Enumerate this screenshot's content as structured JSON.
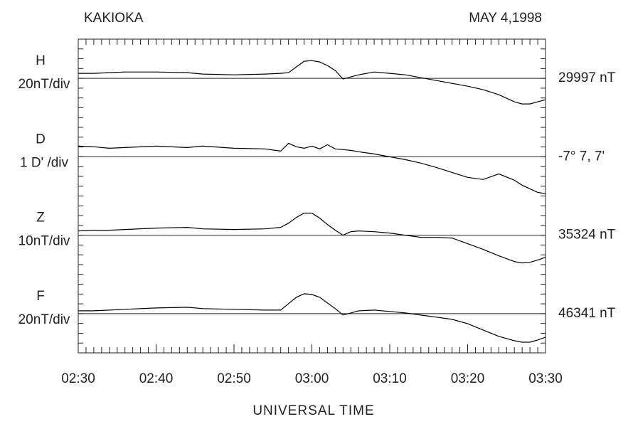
{
  "chart_data": {
    "type": "line",
    "title": "KAKIOKA",
    "subtitle": "MAY 4,1998",
    "x_label": "UNIVERSAL TIME",
    "x": [
      150,
      152,
      154,
      156,
      160,
      164,
      166,
      170,
      174,
      176,
      177,
      178,
      179,
      180,
      181,
      182,
      183,
      184,
      185,
      186,
      188,
      190,
      192,
      194,
      196,
      198,
      200,
      202,
      204,
      206,
      207,
      208,
      209,
      210
    ],
    "xlim": [
      150,
      210
    ],
    "xticks": [
      {
        "value": 150,
        "label": "02:30"
      },
      {
        "value": 160,
        "label": "02:40"
      },
      {
        "value": 170,
        "label": "02:50"
      },
      {
        "value": 180,
        "label": "03:00"
      },
      {
        "value": 190,
        "label": "03:10"
      },
      {
        "value": 200,
        "label": "03:20"
      },
      {
        "value": 210,
        "label": "03:30"
      }
    ],
    "xminorticks": [
      150,
      151,
      152,
      153,
      154,
      155,
      156,
      157,
      158,
      159,
      160,
      161,
      162,
      163,
      164,
      165,
      166,
      167,
      168,
      169,
      170,
      171,
      172,
      173,
      174,
      175,
      176,
      177,
      178,
      179,
      180,
      181,
      182,
      183,
      184,
      185,
      186,
      187,
      188,
      189,
      190,
      191,
      192,
      193,
      194,
      195,
      196,
      197,
      198,
      199,
      200,
      201,
      202,
      203,
      204,
      205,
      206,
      207,
      208,
      209,
      210
    ],
    "ylim": [
      0,
      32
    ],
    "yticks": [
      0,
      1,
      2,
      3,
      4,
      5,
      6,
      7,
      8,
      9,
      10,
      11,
      12,
      13,
      14,
      15,
      16,
      17,
      18,
      19,
      20,
      21,
      22,
      23,
      24,
      25,
      26,
      27,
      28,
      29,
      30,
      31,
      32
    ],
    "series": [
      {
        "name": "H",
        "scale_label": "20nT/div",
        "baseline_label": "29997 nT",
        "baseline": 28,
        "color": "#000000",
        "values": [
          28.51,
          28.51,
          28.58,
          28.65,
          28.65,
          28.58,
          28.44,
          28.36,
          28.44,
          28.51,
          28.58,
          29.16,
          29.74,
          29.81,
          29.67,
          29.31,
          28.8,
          27.93,
          28.15,
          28.36,
          28.65,
          28.51,
          28.36,
          28.07,
          27.78,
          27.49,
          27.2,
          26.84,
          26.33,
          25.61,
          25.39,
          25.39,
          25.61,
          25.82
        ]
      },
      {
        "name": "D",
        "scale_label": "1 D' /div",
        "baseline_label": "-7° 7, 7'",
        "baseline": 20,
        "color": "#000000",
        "values": [
          21.09,
          21.02,
          20.87,
          20.94,
          21.09,
          20.94,
          21.09,
          20.87,
          20.8,
          20.58,
          21.38,
          21.02,
          20.87,
          21.09,
          20.8,
          21.23,
          20.8,
          20.73,
          20.65,
          20.51,
          20.29,
          20.0,
          19.71,
          19.35,
          18.91,
          18.4,
          17.9,
          17.68,
          18.26,
          17.61,
          17.1,
          16.73,
          16.37,
          16.23
        ]
      },
      {
        "name": "Z",
        "scale_label": "10nT/div",
        "baseline_label": "35324 nT",
        "baseline": 12,
        "color": "#000000",
        "values": [
          12.44,
          12.51,
          12.51,
          12.58,
          12.73,
          12.8,
          12.65,
          12.58,
          12.65,
          12.8,
          13.23,
          13.81,
          14.25,
          14.25,
          13.74,
          13.09,
          12.51,
          12.0,
          12.36,
          12.44,
          12.36,
          12.22,
          12.0,
          11.78,
          11.78,
          11.71,
          11.13,
          10.55,
          9.9,
          9.31,
          9.17,
          9.24,
          9.46,
          9.75
        ]
      },
      {
        "name": "F",
        "scale_label": "20nT/div",
        "baseline_label": "46341 nT",
        "baseline": 4,
        "color": "#000000",
        "values": [
          4.29,
          4.29,
          4.36,
          4.44,
          4.58,
          4.65,
          4.51,
          4.44,
          4.36,
          4.36,
          5.02,
          5.67,
          6.03,
          5.96,
          5.67,
          5.09,
          4.51,
          3.85,
          4.07,
          4.29,
          4.36,
          4.22,
          4.07,
          3.85,
          3.64,
          3.42,
          2.98,
          2.33,
          1.68,
          1.24,
          1.09,
          1.09,
          1.31,
          1.6
        ]
      }
    ]
  }
}
